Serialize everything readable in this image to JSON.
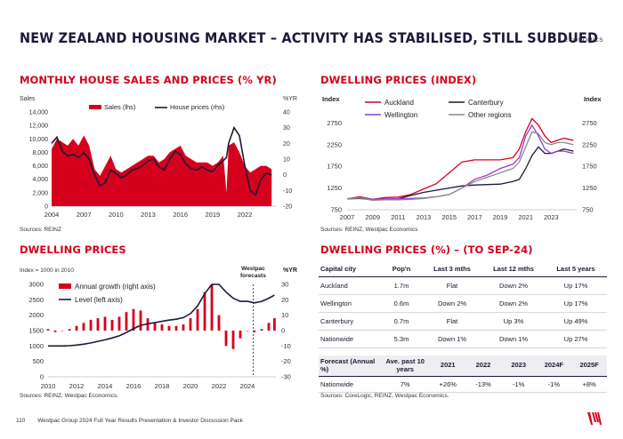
{
  "header": {
    "title": "NEW ZEALAND HOUSING MARKET – ACTIVITY HAS STABILISED, STILL SUBDUED",
    "tag": "ECONOMICS"
  },
  "panel1": {
    "title": "MONTHLY HOUSE SALES AND PRICES (% YR)",
    "source": "Sources: REINZ"
  },
  "panel2": {
    "title": "DWELLING PRICES (INDEX)",
    "source": "Sources: REINZ, Westpac Economics"
  },
  "panel3": {
    "title": "DWELLING PRICES",
    "index_note": "Index = 1000 in 2010",
    "forecast_label_1": "Westpac",
    "forecast_label_2": "forecasts",
    "source": "Sources: REINZ, Westpac Economics."
  },
  "panel4": {
    "title": "DWELLING PRICES (%) – (TO SEP-24)",
    "headers": [
      "Capital city",
      "Pop'n",
      "Last 3 mths",
      "Last 12 mths",
      "Last 5 years"
    ],
    "rows": [
      [
        "Auckland",
        "1.7m",
        "Flat",
        "Down 2%",
        "Up 17%"
      ],
      [
        "Wellington",
        "0.6m",
        "Down 2%",
        "Down 2%",
        "Up 17%"
      ],
      [
        "Canterbury",
        "0.7m",
        "Flat",
        "Up 3%",
        "Up 49%"
      ],
      [
        "Nationwide",
        "5.3m",
        "Down 1%",
        "Down 1%",
        "Up 27%"
      ]
    ],
    "forecast_headers": [
      "Forecast (Annual %)",
      "Ave. past 10 years",
      "2021",
      "2022",
      "2023",
      "2024F",
      "2025F"
    ],
    "forecast_row": [
      "Nationwide",
      "7%",
      "+26%",
      "-13%",
      "-1%",
      "-1%",
      "+8%"
    ],
    "source": "Sources: CoreLogic, REINZ, Westpac Economics."
  },
  "footer": {
    "page": "110",
    "text": "Westpac Group 2024 Full Year Results Presentation & Investor Discussion Pack"
  },
  "colors": {
    "red": "#d5001c",
    "navy": "#1b1a3a",
    "purple": "#9b35d8",
    "grey": "#8a8a8a"
  },
  "chart_data": [
    {
      "type": "bar",
      "title": "MONTHLY HOUSE SALES AND PRICES (% YR)",
      "ylabel": "Sales",
      "y2label": "%YR",
      "ylim": [
        0,
        14000
      ],
      "y2lim": [
        -20,
        40
      ],
      "yticks": [
        "0",
        "2,000",
        "4,000",
        "6,000",
        "8,000",
        "10,000",
        "12,000",
        "14,000"
      ],
      "y2ticks": [
        "-20",
        "-10",
        "0",
        "10",
        "20",
        "30",
        "40"
      ],
      "xticks": [
        "2004",
        "2007",
        "2010",
        "2013",
        "2016",
        "2019",
        "2022"
      ],
      "x": [
        2004.0,
        2004.5,
        2005.0,
        2005.5,
        2006.0,
        2006.5,
        2007.0,
        2007.5,
        2008.0,
        2008.5,
        2009.0,
        2009.5,
        2010.0,
        2010.5,
        2011.0,
        2011.5,
        2012.0,
        2012.5,
        2013.0,
        2013.5,
        2014.0,
        2014.5,
        2015.0,
        2015.5,
        2016.0,
        2016.5,
        2017.0,
        2017.5,
        2018.0,
        2018.5,
        2019.0,
        2019.5,
        2020.0,
        2020.3,
        2020.5,
        2021.0,
        2021.5,
        2022.0,
        2022.5,
        2023.0,
        2023.5,
        2024.0,
        2024.5
      ],
      "series": [
        {
          "name": "Sales (lhs)",
          "values": [
            8500,
            10000,
            9500,
            9000,
            10000,
            9000,
            10500,
            9000,
            5500,
            4500,
            6000,
            7500,
            5500,
            5000,
            5500,
            6000,
            6500,
            7000,
            7500,
            7500,
            6500,
            7000,
            8000,
            8500,
            9000,
            7500,
            7000,
            6500,
            6500,
            6500,
            6000,
            6500,
            7500,
            2000,
            9000,
            9500,
            8000,
            6000,
            5000,
            5500,
            6000,
            6000,
            5500
          ]
        },
        {
          "name": "House prices (rhs)",
          "values": [
            20,
            24,
            15,
            12,
            13,
            11,
            14,
            10,
            0,
            -7,
            -5,
            3,
            1,
            -2,
            0,
            3,
            4,
            6,
            9,
            10,
            5,
            3,
            10,
            15,
            13,
            7,
            4,
            3,
            5,
            3,
            2,
            6,
            9,
            11,
            20,
            30,
            25,
            6,
            -10,
            -13,
            -3,
            1,
            0
          ]
        }
      ]
    },
    {
      "type": "line",
      "title": "DWELLING PRICES (INDEX)",
      "ylabel": "Index",
      "ylim": [
        750,
        3250
      ],
      "yticks": [
        "750",
        "1250",
        "1750",
        "2250",
        "2750"
      ],
      "xticks": [
        "2007",
        "2009",
        "2011",
        "2013",
        "2015",
        "2017",
        "2019",
        "2021",
        "2023"
      ],
      "x": [
        2007,
        2008,
        2009,
        2010,
        2011,
        2012,
        2013,
        2014,
        2015,
        2016,
        2017,
        2018,
        2019,
        2020,
        2020.5,
        2021,
        2021.5,
        2022,
        2022.5,
        2023,
        2023.5,
        2024,
        2024.75
      ],
      "series": [
        {
          "name": "Auckland",
          "values": [
            1000,
            1050,
            990,
            1030,
            1040,
            1100,
            1230,
            1350,
            1600,
            1850,
            1900,
            1900,
            1900,
            1950,
            2150,
            2550,
            2850,
            2700,
            2450,
            2300,
            2350,
            2400,
            2350
          ]
        },
        {
          "name": "Canterbury",
          "values": [
            1000,
            1010,
            980,
            990,
            1000,
            1080,
            1150,
            1200,
            1250,
            1300,
            1320,
            1330,
            1340,
            1400,
            1450,
            1700,
            2000,
            2200,
            2050,
            2050,
            2100,
            2150,
            2100
          ]
        },
        {
          "name": "Wellington",
          "values": [
            1000,
            1030,
            990,
            1000,
            1000,
            1010,
            1020,
            1050,
            1100,
            1250,
            1450,
            1550,
            1700,
            1800,
            1950,
            2450,
            2700,
            2450,
            2150,
            2050,
            2100,
            2100,
            2050
          ]
        },
        {
          "name": "Other regions",
          "values": [
            1000,
            1020,
            970,
            980,
            980,
            990,
            1010,
            1050,
            1100,
            1250,
            1400,
            1500,
            1600,
            1700,
            1850,
            2200,
            2550,
            2500,
            2300,
            2250,
            2300,
            2300,
            2250
          ]
        }
      ]
    },
    {
      "type": "bar",
      "title": "DWELLING PRICES",
      "ylim": [
        0,
        3000
      ],
      "y2lim": [
        -30,
        30
      ],
      "y2label": "%YR",
      "yticks": [
        "0",
        "500",
        "1000",
        "1500",
        "2000",
        "2500",
        "3000"
      ],
      "y2ticks": [
        "-30",
        "-20",
        "-10",
        "0",
        "10",
        "20",
        "30"
      ],
      "xticks": [
        "2010",
        "2012",
        "2014",
        "2016",
        "2018",
        "2020",
        "2022",
        "2024"
      ],
      "forecast_start": 2024.4,
      "x": [
        2010,
        2010.5,
        2011,
        2011.5,
        2012,
        2012.5,
        2013,
        2013.5,
        2014,
        2014.5,
        2015,
        2015.5,
        2016,
        2016.5,
        2017,
        2017.5,
        2018,
        2018.5,
        2019,
        2019.5,
        2020,
        2020.5,
        2021,
        2021.5,
        2022,
        2022.5,
        2023,
        2023.5,
        2024,
        2024.5,
        2025,
        2025.5,
        2025.9
      ],
      "series": [
        {
          "name": "Annual growth (right axis)",
          "values": [
            1,
            -1,
            0,
            1,
            3,
            5,
            7,
            8,
            9,
            7,
            9,
            12,
            14,
            13,
            8,
            5,
            4,
            3,
            3,
            4,
            8,
            14,
            25,
            30,
            10,
            -10,
            -12,
            -5,
            0,
            -1,
            1,
            5,
            8
          ]
        },
        {
          "name": "Level (left axis)",
          "values": [
            1000,
            1000,
            1000,
            1010,
            1030,
            1060,
            1100,
            1150,
            1200,
            1260,
            1330,
            1440,
            1560,
            1670,
            1720,
            1760,
            1800,
            1840,
            1870,
            1920,
            2050,
            2300,
            2700,
            3000,
            3000,
            2750,
            2550,
            2450,
            2450,
            2400,
            2450,
            2550,
            2650
          ]
        }
      ]
    }
  ]
}
